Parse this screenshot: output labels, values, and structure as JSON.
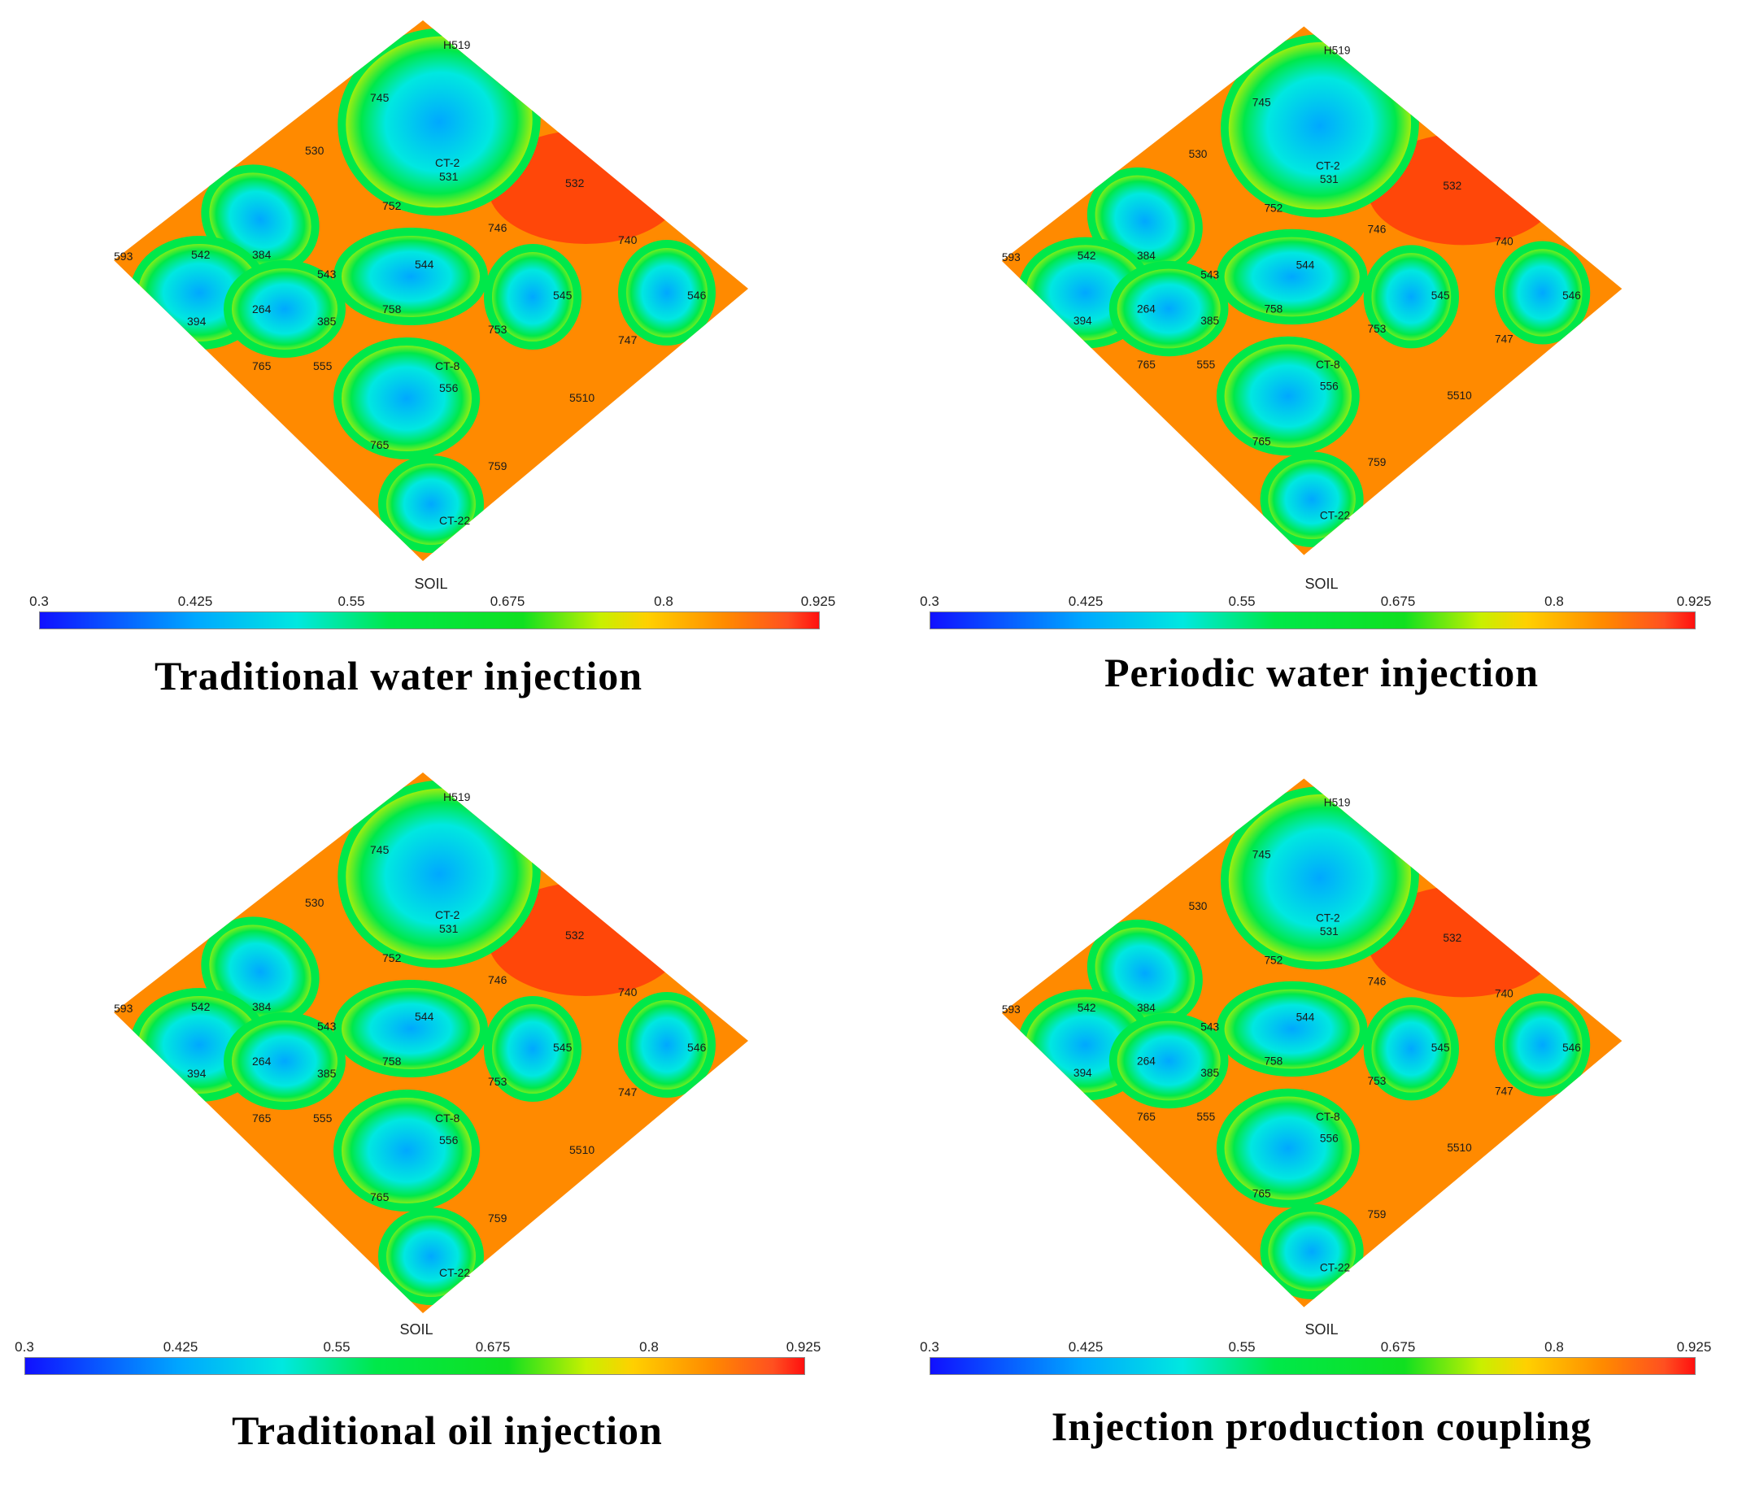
{
  "colorbar": {
    "title": "SOIL",
    "ticks": [
      "0.3",
      "0.425",
      "0.55",
      "0.675",
      "0.8",
      "0.925"
    ],
    "tick_values": [
      0.3,
      0.425,
      0.55,
      0.675,
      0.8,
      0.925
    ],
    "range": [
      0.3,
      0.925
    ],
    "colors": [
      "#1010ff",
      "#00a8ff",
      "#00e8e0",
      "#00e84a",
      "#c8f000",
      "#ffd000",
      "#ff8a00",
      "#ff1010"
    ]
  },
  "wells": [
    "H519",
    "745",
    "530",
    "CT-2",
    "531",
    "532",
    "752",
    "746",
    "740",
    "593",
    "542",
    "384",
    "544",
    "543",
    "545",
    "546",
    "264",
    "385",
    "758",
    "753",
    "747",
    "394",
    "765",
    "555",
    "CT-8",
    "556",
    "5510",
    "765",
    "759",
    "CT-22"
  ],
  "panels": [
    {
      "caption": "Traditional water injection"
    },
    {
      "caption": "Periodic water injection"
    },
    {
      "caption": "Traditional oil injection"
    },
    {
      "caption": "Injection production coupling"
    }
  ]
}
